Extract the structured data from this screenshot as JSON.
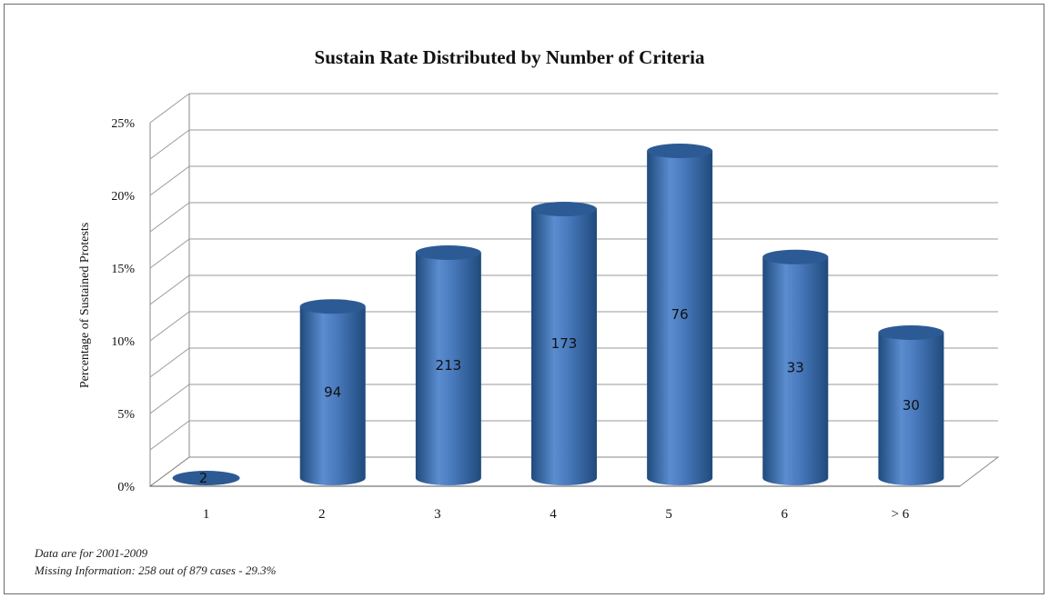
{
  "chart_data": {
    "type": "bar",
    "title": "Sustain Rate Distributed by Number of Criteria",
    "xlabel": "",
    "ylabel": "Percentage of Sustained Protests",
    "categories": [
      "1",
      "2",
      "3",
      "4",
      "5",
      "6",
      "> 6"
    ],
    "values": [
      0.0,
      11.8,
      15.5,
      18.5,
      22.5,
      15.2,
      10.0
    ],
    "data_labels": [
      "2",
      "94",
      "213",
      "173",
      "76",
      "33",
      "30"
    ],
    "y_ticks": [
      "0%",
      "5%",
      "10%",
      "15%",
      "20%",
      "25%"
    ],
    "ylim": [
      0,
      25
    ],
    "grid": true,
    "style": "3d-cylinder",
    "bar_color": "#4a7bbf",
    "bar_color_dark": "#1f4a7c"
  },
  "notes": {
    "line1": "Data are for 2001-2009",
    "line2": "Missing Information: 258 out of 879 cases - 29.3%"
  }
}
